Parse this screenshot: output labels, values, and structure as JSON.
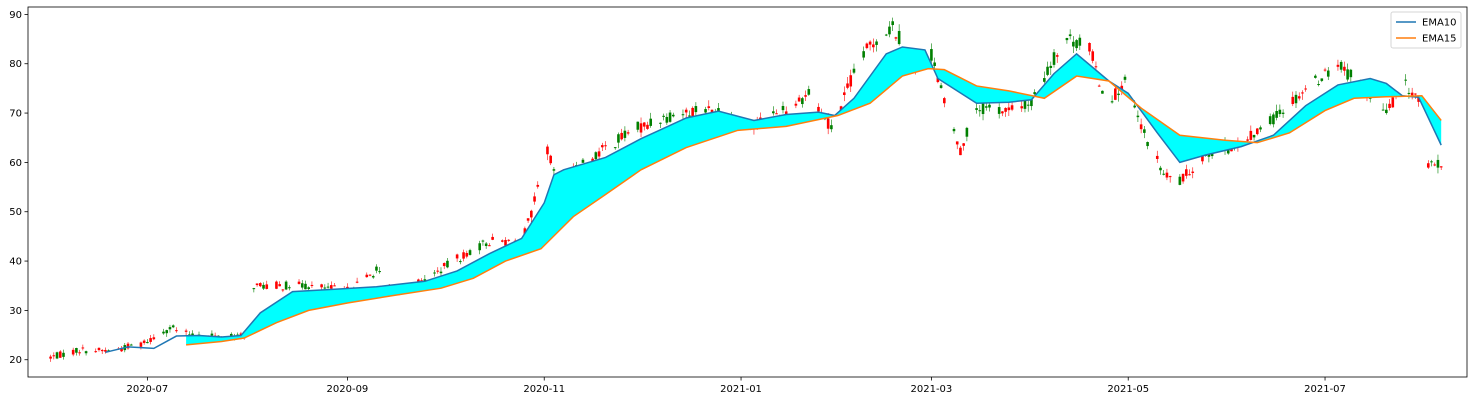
{
  "chart_data": {
    "type": "line",
    "title": "",
    "xlabel": "",
    "ylabel": "",
    "xlim": [
      "2020-05-25",
      "2021-08-14"
    ],
    "ylim": [
      16.5,
      91.5
    ],
    "yticks": [
      20,
      30,
      40,
      50,
      60,
      70,
      80,
      90
    ],
    "xticks": [
      "2020-07",
      "2020-09",
      "2020-11",
      "2021-01",
      "2021-03",
      "2021-05",
      "2021-07"
    ],
    "grid": false,
    "legend_position": "top-right",
    "fill_between": {
      "series": [
        "EMA10",
        "EMA15"
      ],
      "color": "#00ffff"
    },
    "series": [
      {
        "name": "EMA10",
        "color": "#1f77b4",
        "points": [
          [
            "2020-06-18",
            21.5
          ],
          [
            "2020-06-25",
            22.6
          ],
          [
            "2020-07-03",
            22.3
          ],
          [
            "2020-07-10",
            24.8
          ],
          [
            "2020-07-17",
            24.9
          ],
          [
            "2020-07-24",
            24.6
          ],
          [
            "2020-07-30",
            24.9
          ],
          [
            "2020-08-05",
            29.5
          ],
          [
            "2020-08-15",
            33.8
          ],
          [
            "2020-08-28",
            34.3
          ],
          [
            "2020-09-10",
            34.8
          ],
          [
            "2020-09-25",
            35.9
          ],
          [
            "2020-10-05",
            38.0
          ],
          [
            "2020-10-15",
            41.5
          ],
          [
            "2020-10-25",
            44.6
          ],
          [
            "2020-11-01",
            51.8
          ],
          [
            "2020-11-04",
            57.5
          ],
          [
            "2020-11-07",
            58.5
          ],
          [
            "2020-11-20",
            61.0
          ],
          [
            "2020-12-01",
            64.8
          ],
          [
            "2020-12-15",
            69.0
          ],
          [
            "2020-12-25",
            70.4
          ],
          [
            "2021-01-05",
            68.5
          ],
          [
            "2021-01-15",
            69.7
          ],
          [
            "2021-01-25",
            70.2
          ],
          [
            "2021-01-30",
            69.5
          ],
          [
            "2021-02-05",
            73.0
          ],
          [
            "2021-02-15",
            82.0
          ],
          [
            "2021-02-20",
            83.4
          ],
          [
            "2021-02-27",
            82.8
          ],
          [
            "2021-03-03",
            77.0
          ],
          [
            "2021-03-15",
            72.0
          ],
          [
            "2021-03-25",
            72.2
          ],
          [
            "2021-04-01",
            72.7
          ],
          [
            "2021-04-08",
            78.0
          ],
          [
            "2021-04-15",
            82.0
          ],
          [
            "2021-04-25",
            76.5
          ],
          [
            "2021-05-01",
            74.0
          ],
          [
            "2021-05-10",
            66.0
          ],
          [
            "2021-05-17",
            60.0
          ],
          [
            "2021-05-25",
            61.5
          ],
          [
            "2021-06-05",
            63.2
          ],
          [
            "2021-06-15",
            65.5
          ],
          [
            "2021-06-25",
            71.5
          ],
          [
            "2021-07-05",
            75.7
          ],
          [
            "2021-07-15",
            77.0
          ],
          [
            "2021-07-20",
            76.0
          ],
          [
            "2021-07-25",
            73.5
          ],
          [
            "2021-07-30",
            73.2
          ],
          [
            "2021-08-06",
            63.5
          ]
        ]
      },
      {
        "name": "EMA15",
        "color": "#ff7f0e",
        "points": [
          [
            "2020-07-13",
            23.0
          ],
          [
            "2020-07-24",
            23.7
          ],
          [
            "2020-07-31",
            24.4
          ],
          [
            "2020-08-10",
            27.5
          ],
          [
            "2020-08-20",
            30.0
          ],
          [
            "2020-09-01",
            31.5
          ],
          [
            "2020-09-15",
            33.0
          ],
          [
            "2020-09-30",
            34.5
          ],
          [
            "2020-10-10",
            36.5
          ],
          [
            "2020-10-20",
            40.0
          ],
          [
            "2020-10-31",
            42.5
          ],
          [
            "2020-11-10",
            49.0
          ],
          [
            "2020-11-20",
            53.5
          ],
          [
            "2020-12-01",
            58.5
          ],
          [
            "2020-12-15",
            63.0
          ],
          [
            "2020-12-31",
            66.5
          ],
          [
            "2021-01-15",
            67.3
          ],
          [
            "2021-01-31",
            69.5
          ],
          [
            "2021-02-10",
            72.0
          ],
          [
            "2021-02-20",
            77.5
          ],
          [
            "2021-02-28",
            79.0
          ],
          [
            "2021-03-05",
            78.8
          ],
          [
            "2021-03-15",
            75.5
          ],
          [
            "2021-03-25",
            74.5
          ],
          [
            "2021-04-05",
            73.0
          ],
          [
            "2021-04-15",
            77.5
          ],
          [
            "2021-04-25",
            76.5
          ],
          [
            "2021-05-05",
            71.0
          ],
          [
            "2021-05-17",
            65.5
          ],
          [
            "2021-05-31",
            64.5
          ],
          [
            "2021-06-10",
            64.0
          ],
          [
            "2021-06-20",
            66.0
          ],
          [
            "2021-07-01",
            70.5
          ],
          [
            "2021-07-10",
            73.0
          ],
          [
            "2021-07-20",
            73.3
          ],
          [
            "2021-07-31",
            73.5
          ],
          [
            "2021-08-06",
            68.5
          ]
        ]
      }
    ],
    "candles_estimated": {
      "up_color": "#008000",
      "down_color": "#ff0000",
      "anchors": [
        [
          "2020-06-01",
          20.5
        ],
        [
          "2020-06-10",
          22.0
        ],
        [
          "2020-06-20",
          21.8
        ],
        [
          "2020-06-30",
          23.5
        ],
        [
          "2020-07-08",
          26.5
        ],
        [
          "2020-07-14",
          25.0
        ],
        [
          "2020-07-25",
          24.5
        ],
        [
          "2020-07-31",
          24.8
        ],
        [
          "2020-08-03",
          35.0
        ],
        [
          "2020-08-20",
          35.0
        ],
        [
          "2020-09-01",
          34.0
        ],
        [
          "2020-09-10",
          38.0
        ],
        [
          "2020-09-15",
          34.0
        ],
        [
          "2020-09-25",
          36.0
        ],
        [
          "2020-10-05",
          40.5
        ],
        [
          "2020-10-15",
          44.0
        ],
        [
          "2020-10-25",
          44.0
        ],
        [
          "2020-10-28",
          49.5
        ],
        [
          "2020-11-02",
          62.5
        ],
        [
          "2020-11-05",
          56.0
        ],
        [
          "2020-11-12",
          59.0
        ],
        [
          "2020-11-20",
          63.0
        ],
        [
          "2020-11-30",
          67.0
        ],
        [
          "2020-12-10",
          69.5
        ],
        [
          "2020-12-20",
          71.0
        ],
        [
          "2021-01-05",
          67.5
        ],
        [
          "2021-01-15",
          71.0
        ],
        [
          "2021-01-22",
          74.0
        ],
        [
          "2021-01-29",
          67.0
        ],
        [
          "2021-02-05",
          78.0
        ],
        [
          "2021-02-10",
          84.0
        ],
        [
          "2021-02-17",
          87.5
        ],
        [
          "2021-02-24",
          80.0
        ],
        [
          "2021-03-01",
          82.0
        ],
        [
          "2021-03-05",
          72.0
        ],
        [
          "2021-03-10",
          62.5
        ],
        [
          "2021-03-15",
          71.0
        ],
        [
          "2021-03-25",
          70.5
        ],
        [
          "2021-04-01",
          72.0
        ],
        [
          "2021-04-08",
          81.0
        ],
        [
          "2021-04-12",
          85.0
        ],
        [
          "2021-04-19",
          83.5
        ],
        [
          "2021-04-24",
          72.0
        ],
        [
          "2021-04-30",
          76.0
        ],
        [
          "2021-05-05",
          67.0
        ],
        [
          "2021-05-12",
          57.5
        ],
        [
          "2021-05-17",
          56.0
        ],
        [
          "2021-05-25",
          62.0
        ],
        [
          "2021-06-05",
          63.5
        ],
        [
          "2021-06-15",
          69.0
        ],
        [
          "2021-06-25",
          75.0
        ],
        [
          "2021-07-05",
          80.0
        ],
        [
          "2021-07-15",
          74.0
        ],
        [
          "2021-07-20",
          70.0
        ],
        [
          "2021-07-25",
          76.0
        ],
        [
          "2021-07-30",
          73.0
        ],
        [
          "2021-08-01",
          59.0
        ],
        [
          "2021-08-06",
          59.5
        ]
      ]
    }
  }
}
